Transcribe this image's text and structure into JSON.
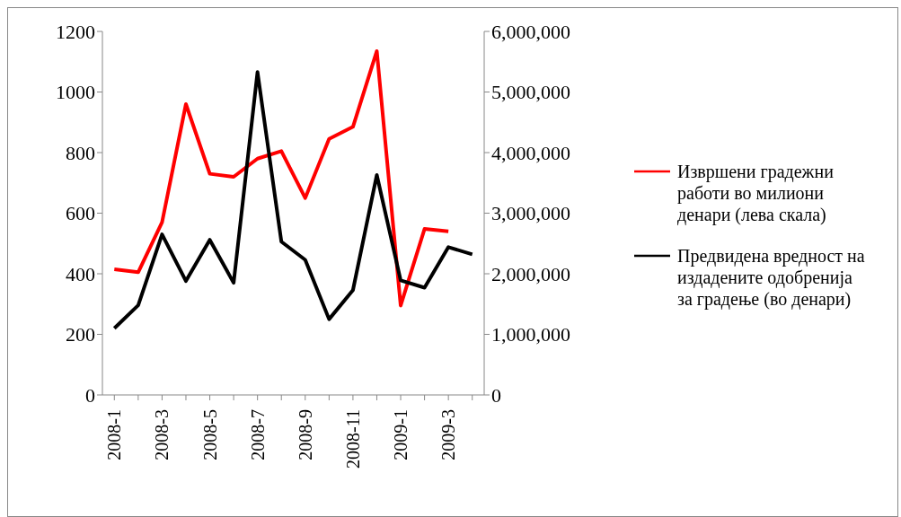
{
  "chart_data": {
    "type": "line",
    "categories": [
      "2008-1",
      null,
      "2008-3",
      null,
      "2008-5",
      null,
      "2008-7",
      null,
      "2008-9",
      null,
      "2008-11",
      null,
      "2009-1",
      null,
      "2009-3",
      null
    ],
    "series": [
      {
        "name": "Извршени градежни работи во милиони денари (лева скала)",
        "color": "#ff0000",
        "values": [
          415,
          405,
          570,
          960,
          730,
          720,
          780,
          805,
          650,
          845,
          885,
          1135,
          295,
          548,
          540,
          null
        ]
      },
      {
        "name": "Предвидена вредност на издадените одобренија за градење (во денари)",
        "color": "#000000",
        "axis": "y2",
        "values": [
          1100000,
          1480000,
          2650000,
          1880000,
          2560000,
          1850000,
          5330000,
          2530000,
          2230000,
          1250000,
          1730000,
          3630000,
          1890000,
          1770000,
          2440000,
          2320000
        ]
      }
    ],
    "ylim": [
      0,
      1200
    ],
    "yticks": [
      0,
      200,
      400,
      600,
      800,
      1000,
      1200
    ],
    "y2lim": [
      0,
      6000000
    ],
    "y2ticks": [
      {
        "value": 0,
        "label": "0"
      },
      {
        "value": 1000000,
        "label": "1,000,000"
      },
      {
        "value": 2000000,
        "label": "2,000,000"
      },
      {
        "value": 3000000,
        "label": "3,000,000"
      },
      {
        "value": 4000000,
        "label": "4,000,000"
      },
      {
        "value": 5000000,
        "label": "5,000,000"
      },
      {
        "value": 6000000,
        "label": "6,000,000"
      }
    ],
    "grid": false,
    "legend": "right",
    "marker": "none",
    "line_style": "solid"
  }
}
